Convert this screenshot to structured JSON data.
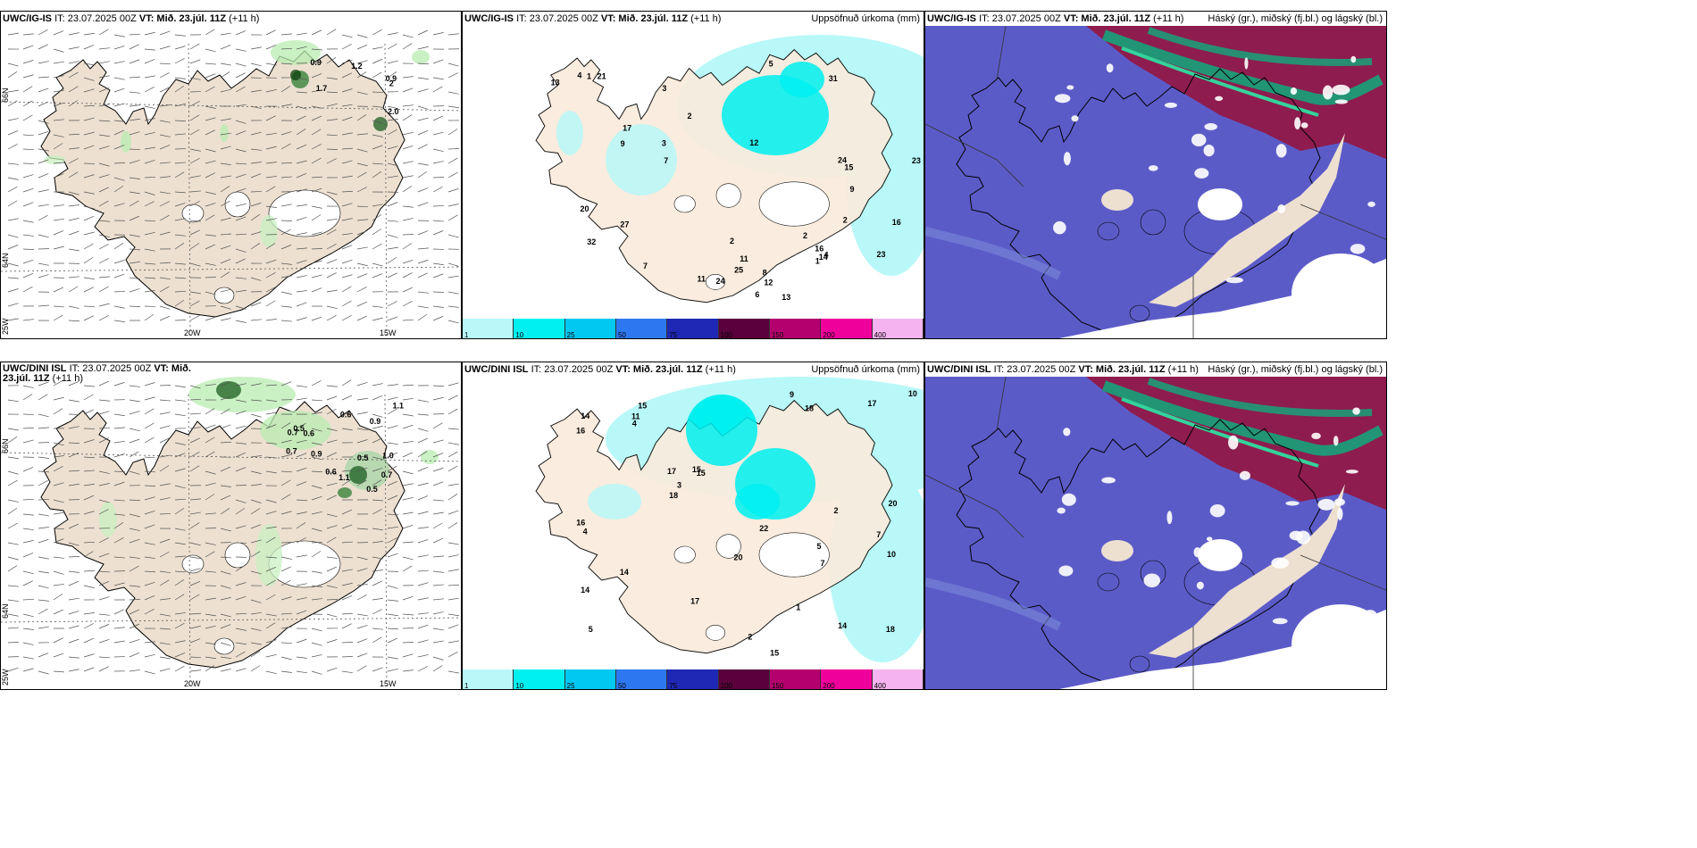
{
  "panels": [
    {
      "model": "UWC/IG-IS",
      "it": "IT: 23.07.2025 00Z",
      "vt_label": "VT:",
      "vt": "Mið. 23.júl. 11Z",
      "lead": "(+11 h)",
      "right": ""
    },
    {
      "model": "UWC/IG-IS",
      "it": "IT: 23.07.2025 00Z",
      "vt_label": "VT:",
      "vt": "Mið. 23.júl. 11Z",
      "lead": "(+11 h)",
      "right": "Uppsöfnuð úrkoma (mm)"
    },
    {
      "model": "UWC/IG-IS",
      "it": "IT: 23.07.2025 00Z",
      "vt_label": "VT:",
      "vt": "Mið. 23.júl. 11Z",
      "lead": "(+11 h)",
      "right": "Háský (gr.), miðský (fj.bl.) og lágský (bl.)"
    },
    {
      "model": "UWC/DINI ISL",
      "it": "IT: 23.07.2025 00Z",
      "vt_label": "VT:",
      "vt": "Mið. 23.júl. 11Z",
      "lead": "(+11 h)",
      "right": ""
    },
    {
      "model": "UWC/DINI ISL",
      "it": "IT: 23.07.2025 00Z",
      "vt_label": "VT:",
      "vt": "Mið. 23.júl. 11Z",
      "lead": "(+11 h)",
      "right": "Uppsöfnuð úrkoma (mm)"
    },
    {
      "model": "UWC/DINI ISL",
      "it": "IT: 23.07.2025 00Z",
      "vt_label": "VT:",
      "vt": "Mið. 23.júl. 11Z",
      "lead": "(+11 h)",
      "right": "Háský (gr.), miðský (fj.bl.) og lágský (bl.)"
    }
  ],
  "axes": {
    "lon_left": "20W",
    "lon_right": "15W",
    "lat_top": "66N",
    "lat_mid": "64N",
    "lat_bottom": "25W"
  },
  "precip_legend": {
    "ticks": [
      "1",
      "10",
      "25",
      "50",
      "75",
      "100",
      "150",
      "200",
      "400"
    ],
    "colors": [
      "#b8f8f8",
      "#00f0f0",
      "#00c8f0",
      "#2d78f0",
      "#1e28b4",
      "#5a003c",
      "#b4006e",
      "#f0009b",
      "#f5b4f0"
    ]
  },
  "panel1_labels": [
    "0.9",
    "0.9",
    "1.2",
    "2",
    "1.7",
    "2.0"
  ],
  "panel2_labels": [
    "11",
    "11",
    "12",
    "13",
    "23",
    "32",
    "25",
    "20",
    "24",
    "17",
    "27",
    "23",
    "24",
    "13",
    "31",
    "12",
    "16",
    "14",
    "16",
    "15",
    "21",
    "9",
    "9",
    "7",
    "8",
    "7",
    "5",
    "6",
    "3",
    "3",
    "4",
    "2",
    "2",
    "2",
    "1",
    "2",
    "1",
    "4"
  ],
  "panel4_labels": [
    "0.6",
    "0.5",
    "0.9",
    "0.7",
    "0.5",
    "0.6",
    "0.9",
    "0.7",
    "1.1",
    "1.0",
    "0.7",
    "1.1",
    "0.5",
    "0.6"
  ],
  "panel5_labels": [
    "5",
    "7",
    "5",
    "15",
    "15",
    "14",
    "14",
    "18",
    "17",
    "15",
    "16",
    "16",
    "14",
    "18",
    "17",
    "20",
    "20",
    "22",
    "15",
    "14",
    "10",
    "17",
    "18",
    "10",
    "9",
    "11",
    "7",
    "4",
    "4",
    "2",
    "2",
    "1",
    "3"
  ]
}
